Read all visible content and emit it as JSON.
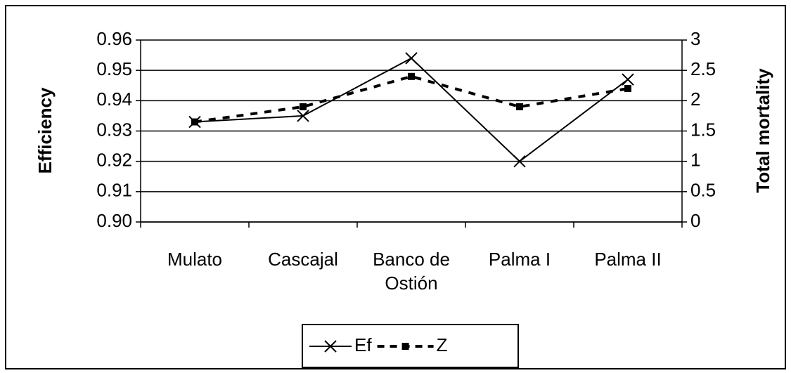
{
  "chart_data": {
    "type": "line",
    "categories": [
      "Mulato",
      "Cascajal",
      "Banco de Ostión",
      "Palma I",
      "Palma II"
    ],
    "series": [
      {
        "name": "Ef",
        "color": "#000000",
        "values": [
          0.933,
          0.935,
          0.954,
          0.92,
          0.947
        ]
      },
      {
        "name": "Z",
        "color": "#000000",
        "axis": "y2",
        "values": [
          1.65,
          1.9,
          2.4,
          1.9,
          2.2
        ]
      }
    ],
    "ylabel": "Efficiency",
    "y2label": "Total mortality",
    "ylim": [
      0.9,
      0.96
    ],
    "yticks": [
      {
        "value": 0.9,
        "label": "0.90"
      },
      0.91,
      0.92,
      0.93,
      0.94,
      0.95,
      0.96
    ],
    "y2lim": [
      0,
      3
    ],
    "y2ticks": [
      0,
      0.5,
      1,
      1.5,
      2,
      2.5,
      3
    ],
    "grid": true,
    "legend": "bottom"
  }
}
